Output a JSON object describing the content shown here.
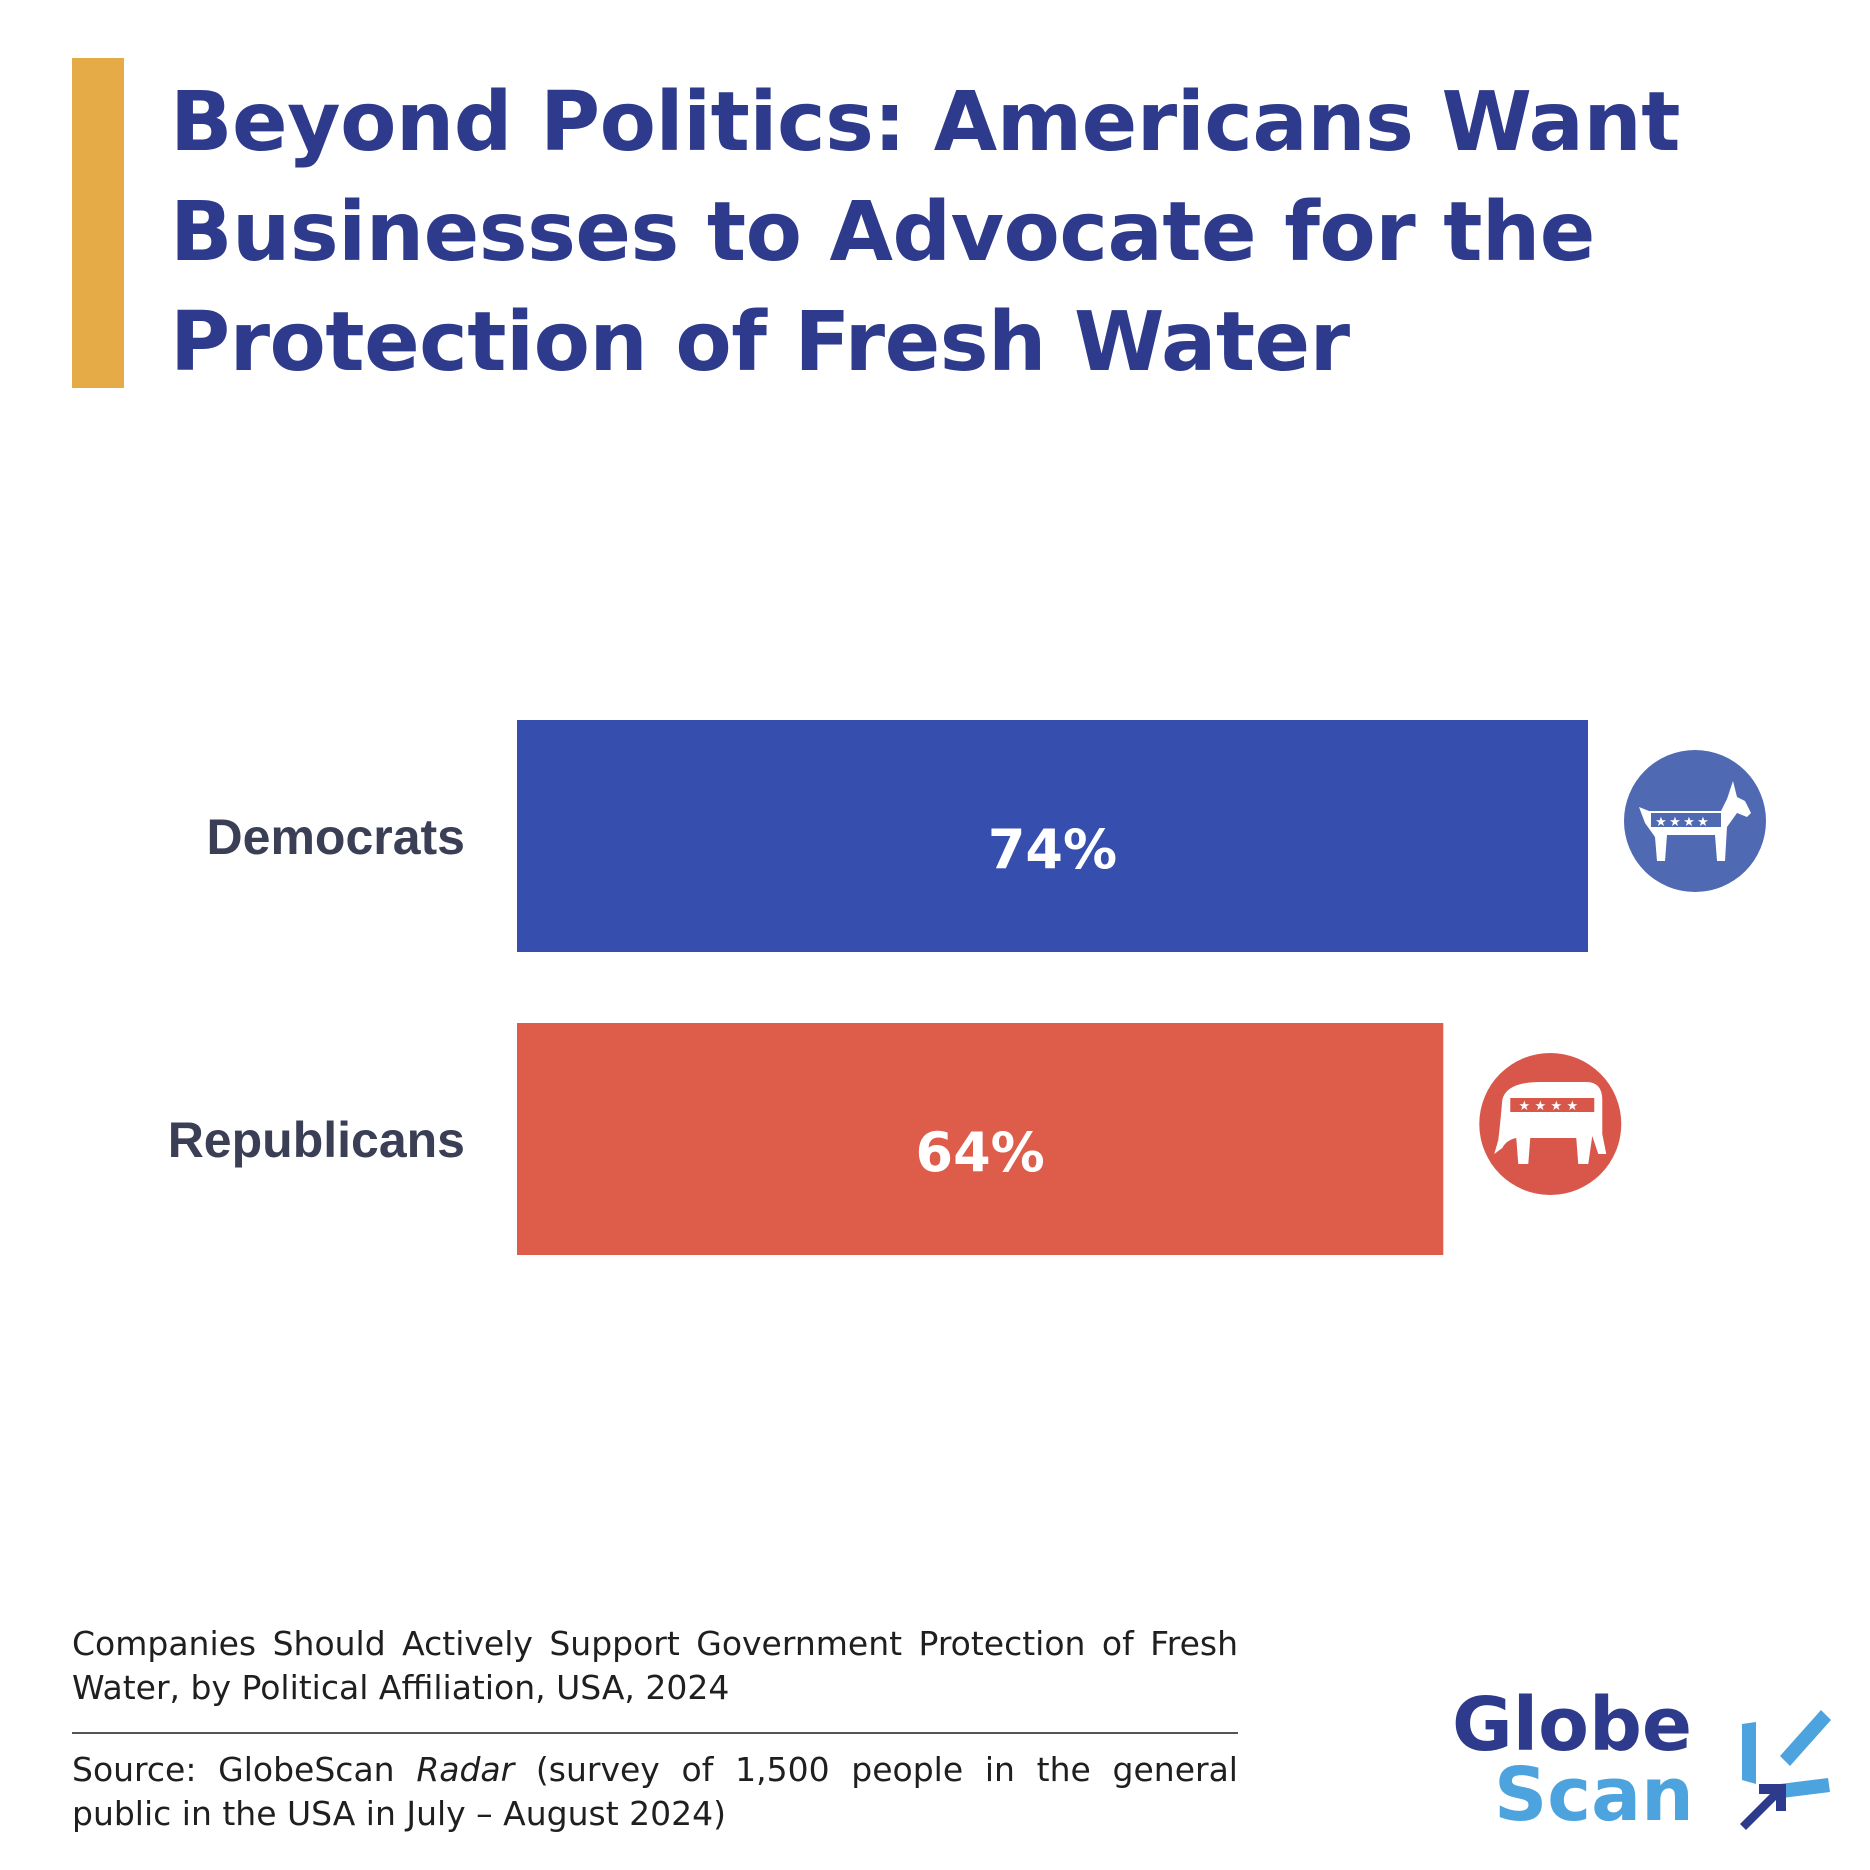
{
  "title_lines": [
    "Beyond Politics: Americans Want",
    "Businesses to Advocate for the",
    "Protection of Fresh Water"
  ],
  "chart_data": {
    "type": "bar",
    "orientation": "horizontal",
    "categories": [
      "Democrats",
      "Republicans"
    ],
    "values": [
      74,
      64
    ],
    "data_labels": [
      "74%",
      "64%"
    ],
    "unit": "%",
    "colors": [
      "#364FAF",
      "#DE5C4A"
    ],
    "icon_colors": [
      "#4F69B3",
      "#D9574A"
    ],
    "icons": [
      "democrat-donkey-icon",
      "republican-elephant-icon"
    ],
    "xlim": [
      0,
      100
    ],
    "grid": false,
    "legend": "none"
  },
  "footer": {
    "subtitle": "Companies Should Actively Support Government Protection of Fresh Water, by Political Affiliation, USA, 2024",
    "source_prefix": "Source: GlobeScan ",
    "source_italic": "Radar",
    "source_suffix": " (survey of 1,500 people in the general public in the USA in July – August 2024)"
  },
  "logo": {
    "line1": "Globe",
    "line2": "Scan",
    "colors": {
      "primary": "#2E3A8C",
      "secondary": "#4DA3DD"
    }
  }
}
